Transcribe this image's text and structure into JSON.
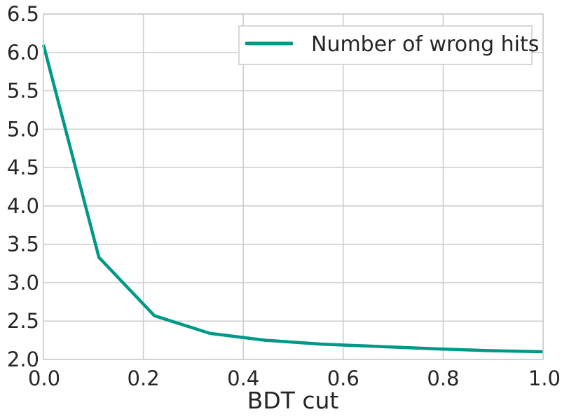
{
  "chart_data": {
    "type": "line",
    "xlabel": "BDT cut",
    "ylabel": "",
    "xlim": [
      0.0,
      1.0
    ],
    "ylim": [
      2.0,
      6.5
    ],
    "xticks": [
      "0.0",
      "0.2",
      "0.4",
      "0.6",
      "0.8",
      "1.0"
    ],
    "yticks": [
      "2.0",
      "2.5",
      "3.0",
      "3.5",
      "4.0",
      "4.5",
      "5.0",
      "5.5",
      "6.0",
      "6.5"
    ],
    "grid": true,
    "legend_position": "top-right",
    "series": [
      {
        "name": "Number of wrong hits",
        "color": "#009988",
        "x": [
          0.0,
          0.111,
          0.222,
          0.333,
          0.444,
          0.556,
          0.667,
          0.778,
          0.889,
          1.0
        ],
        "y": [
          6.1,
          3.33,
          2.57,
          2.34,
          2.25,
          2.2,
          2.17,
          2.14,
          2.115,
          2.1
        ]
      }
    ]
  }
}
